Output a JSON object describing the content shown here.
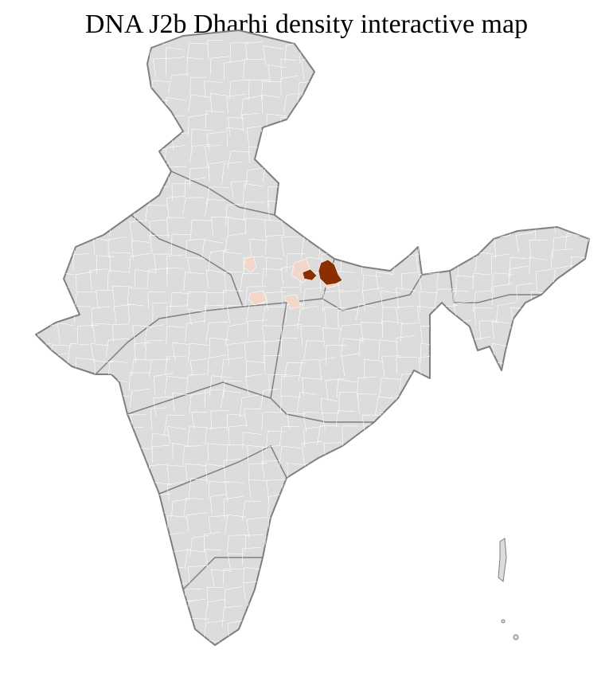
{
  "title": "DNA J2b Dharhi density interactive map",
  "colors": {
    "land": "#dcdcdc",
    "district_border": "#ffffff",
    "state_border": "#7f7f7f",
    "high_density": "#8b2e00",
    "low_density": "#f2d6c9"
  },
  "legend": null
}
